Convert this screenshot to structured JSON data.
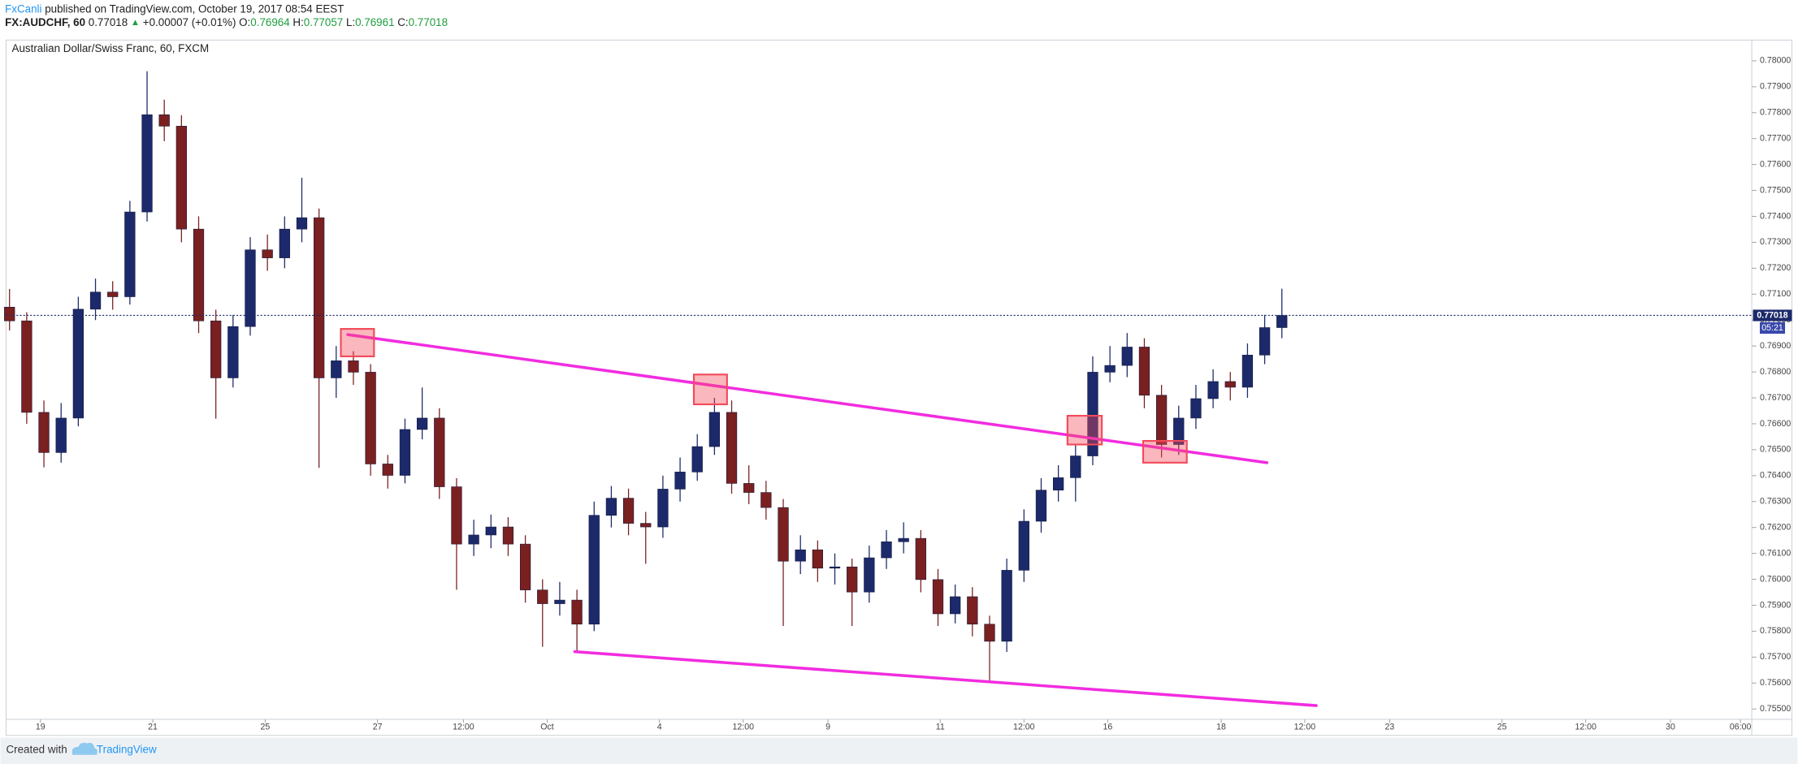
{
  "header": {
    "author": "FxCanli",
    "published": " published on TradingView.com, October 19, 2017 08:54 EEST",
    "symbol": "FX:AUDCHF, 60",
    "last": " 0.77018 ",
    "arrow": "▲",
    "change": " +0.00007 (+0.01%) ",
    "open_label": "O:",
    "open": "0.76964",
    "high_label": " H:",
    "high": "0.77057",
    "low_label": " L:",
    "low": "0.76961",
    "close_label": " C:",
    "close": "0.77018"
  },
  "footer": {
    "created": "Created with",
    "brand": "TradingView"
  },
  "chart_data": {
    "type": "candlestick",
    "title": "Australian Dollar/Swiss Franc, 60, FXCM",
    "x": [
      0,
      1,
      2,
      3,
      4,
      5,
      6,
      7,
      8,
      9,
      10,
      11,
      12,
      13,
      14,
      15,
      16,
      17,
      18,
      19,
      20,
      21,
      22,
      23,
      24,
      25,
      26,
      27,
      28,
      29,
      30,
      31,
      32,
      33,
      34,
      35,
      36,
      37,
      38,
      39,
      40,
      41,
      42,
      43,
      44,
      45,
      46,
      47,
      48,
      49,
      50,
      51,
      52,
      53,
      54,
      55,
      56,
      57,
      58,
      59,
      60,
      61,
      62,
      63,
      64,
      65,
      66,
      67,
      68,
      69,
      70,
      71,
      72,
      73,
      74
    ],
    "open": [
      0.7705,
      0.76997,
      0.76644,
      0.76489,
      0.76622,
      0.77042,
      0.77108,
      0.7709,
      0.77417,
      0.77792,
      0.77748,
      0.77351,
      0.76997,
      0.76777,
      0.76975,
      0.77271,
      0.7724,
      0.77351,
      0.77395,
      0.76777,
      0.76843,
      0.76799,
      0.76445,
      0.76401,
      0.76578,
      0.76622,
      0.76357,
      0.76136,
      0.76171,
      0.76202,
      0.76136,
      0.75959,
      0.75906,
      0.7592,
      0.75827,
      0.76247,
      0.76313,
      0.76216,
      0.76202,
      0.76348,
      0.76414,
      0.76512,
      0.76644,
      0.7637,
      0.76335,
      0.76277,
      0.7607,
      0.76114,
      0.76043,
      0.76048,
      0.75951,
      0.76083,
      0.76145,
      0.76158,
      0.75999,
      0.75867,
      0.75933,
      0.75827,
      0.75761,
      0.76035,
      0.76224,
      0.76344,
      0.76392,
      0.76476,
      0.76799,
      0.76825,
      0.76896,
      0.7671,
      0.7652,
      0.76622,
      0.76697,
      0.76763,
      0.76741,
      0.76865,
      0.76971
    ],
    "high": [
      0.7712,
      0.7703,
      0.7669,
      0.7668,
      0.7709,
      0.7716,
      0.7715,
      0.7746,
      0.7796,
      0.7785,
      0.7779,
      0.774,
      0.7704,
      0.7702,
      0.7732,
      0.7733,
      0.774,
      0.77549,
      0.7743,
      0.769,
      0.7688,
      0.7683,
      0.7648,
      0.7662,
      0.7674,
      0.7666,
      0.7639,
      0.7623,
      0.7625,
      0.7624,
      0.7617,
      0.76,
      0.7599,
      0.7596,
      0.763,
      0.7636,
      0.7635,
      0.7626,
      0.764,
      0.7647,
      0.7656,
      0.767,
      0.7669,
      0.7644,
      0.7638,
      0.7631,
      0.7617,
      0.7615,
      0.761,
      0.7608,
      0.7613,
      0.7619,
      0.7622,
      0.7619,
      0.7604,
      0.7598,
      0.7597,
      0.7586,
      0.7608,
      0.7627,
      0.7639,
      0.7644,
      0.7652,
      0.7686,
      0.769,
      0.7695,
      0.7693,
      0.7675,
      0.7667,
      0.7675,
      0.7681,
      0.768,
      0.7691,
      0.7702,
      0.77121
    ],
    "low": [
      0.7696,
      0.766,
      0.76432,
      0.7645,
      0.7659,
      0.77,
      0.7704,
      0.7706,
      0.7738,
      0.7769,
      0.773,
      0.7695,
      0.7662,
      0.7674,
      0.7694,
      0.7719,
      0.772,
      0.773,
      0.7643,
      0.767,
      0.7675,
      0.764,
      0.7635,
      0.7637,
      0.7654,
      0.7631,
      0.7596,
      0.7609,
      0.7612,
      0.7609,
      0.7591,
      0.7574,
      0.7586,
      0.7572,
      0.758,
      0.762,
      0.7617,
      0.7606,
      0.7616,
      0.763,
      0.7638,
      0.7648,
      0.7633,
      0.7629,
      0.7623,
      0.7582,
      0.7602,
      0.7599,
      0.7598,
      0.7582,
      0.7591,
      0.7604,
      0.761,
      0.7595,
      0.7582,
      0.7583,
      0.7578,
      0.7561,
      0.7572,
      0.7599,
      0.7618,
      0.763,
      0.763,
      0.7644,
      0.7676,
      0.7678,
      0.7666,
      0.7647,
      0.7648,
      0.7658,
      0.7666,
      0.7669,
      0.767,
      0.7683,
      0.7693
    ],
    "close": [
      0.76997,
      0.76644,
      0.76489,
      0.76622,
      0.77042,
      0.77108,
      0.7709,
      0.77417,
      0.77792,
      0.77748,
      0.77351,
      0.76997,
      0.76777,
      0.76975,
      0.77271,
      0.7724,
      0.77351,
      0.77395,
      0.76777,
      0.76843,
      0.76799,
      0.76445,
      0.76401,
      0.76578,
      0.76622,
      0.76357,
      0.76136,
      0.76171,
      0.76202,
      0.76136,
      0.75959,
      0.75906,
      0.7592,
      0.75827,
      0.76247,
      0.76313,
      0.76216,
      0.76202,
      0.76348,
      0.76414,
      0.76512,
      0.76644,
      0.7637,
      0.76335,
      0.76277,
      0.7607,
      0.76114,
      0.76043,
      0.76048,
      0.75951,
      0.76083,
      0.76145,
      0.76158,
      0.75999,
      0.75867,
      0.75933,
      0.75827,
      0.75761,
      0.76035,
      0.76224,
      0.76344,
      0.76392,
      0.76476,
      0.76799,
      0.76825,
      0.76896,
      0.7671,
      0.7652,
      0.76622,
      0.76697,
      0.76763,
      0.76741,
      0.76865,
      0.76971,
      0.77018
    ],
    "up_color": "#1c2a6b",
    "down_color": "#7a2020",
    "xlim": [
      -0.2,
      101.33
    ],
    "xticks": [
      {
        "value": 1.8,
        "label": "19"
      },
      {
        "value": 8.33,
        "label": "21"
      },
      {
        "value": 14.87,
        "label": "25"
      },
      {
        "value": 21.4,
        "label": "27"
      },
      {
        "value": 26.4,
        "label": "12:00"
      },
      {
        "value": 31.27,
        "label": "Oct"
      },
      {
        "value": 37.8,
        "label": "4"
      },
      {
        "value": 42.67,
        "label": "12:00"
      },
      {
        "value": 47.6,
        "label": "9"
      },
      {
        "value": 54.13,
        "label": "11"
      },
      {
        "value": 59.0,
        "label": "12:00"
      },
      {
        "value": 63.87,
        "label": "16"
      },
      {
        "value": 70.47,
        "label": "18"
      },
      {
        "value": 75.33,
        "label": "12:00"
      },
      {
        "value": 80.27,
        "label": "23"
      },
      {
        "value": 86.8,
        "label": "25"
      },
      {
        "value": 91.67,
        "label": "12:00"
      },
      {
        "value": 96.6,
        "label": "30"
      },
      {
        "value": 100.67,
        "label": "06:00"
      }
    ],
    "ylim": [
      0.7546,
      0.7808
    ],
    "yticks": [
      {
        "value": 0.755,
        "label": "0.75500"
      },
      {
        "value": 0.756,
        "label": "0.75600"
      },
      {
        "value": 0.757,
        "label": "0.75700"
      },
      {
        "value": 0.758,
        "label": "0.75800"
      },
      {
        "value": 0.759,
        "label": "0.75900"
      },
      {
        "value": 0.76,
        "label": "0.76000"
      },
      {
        "value": 0.761,
        "label": "0.76100"
      },
      {
        "value": 0.762,
        "label": "0.76200"
      },
      {
        "value": 0.763,
        "label": "0.76300"
      },
      {
        "value": 0.764,
        "label": "0.76400"
      },
      {
        "value": 0.765,
        "label": "0.76500"
      },
      {
        "value": 0.766,
        "label": "0.76600"
      },
      {
        "value": 0.767,
        "label": "0.76700"
      },
      {
        "value": 0.768,
        "label": "0.76800"
      },
      {
        "value": 0.769,
        "label": "0.76900"
      },
      {
        "value": 0.77,
        "label": "0.77000"
      },
      {
        "value": 0.771,
        "label": "0.77100"
      },
      {
        "value": 0.772,
        "label": "0.77200"
      },
      {
        "value": 0.773,
        "label": "0.77300"
      },
      {
        "value": 0.774,
        "label": "0.77400"
      },
      {
        "value": 0.775,
        "label": "0.77500"
      },
      {
        "value": 0.776,
        "label": "0.77600"
      },
      {
        "value": 0.777,
        "label": "0.77700"
      },
      {
        "value": 0.778,
        "label": "0.77800"
      },
      {
        "value": 0.779,
        "label": "0.77900"
      },
      {
        "value": 0.78,
        "label": "0.78000"
      }
    ],
    "grid": false,
    "last_price": 0.77018,
    "last_price_color": "#1c2a6b",
    "countdown": "05:21",
    "countdown_color": "#3949ab",
    "line_color": "#f22ce0",
    "trendlines": [
      {
        "x": [
          19.67,
          73.13
        ],
        "y": [
          0.76944,
          0.7645
        ]
      },
      {
        "x": [
          32.87,
          76.0
        ],
        "y": [
          0.75721,
          0.75513
        ]
      }
    ],
    "box_color": "#f24a5a",
    "boxes": [
      {
        "x": [
          19.27,
          21.2
        ],
        "y": [
          0.76966,
          0.7686
        ]
      },
      {
        "x": [
          39.8,
          41.73
        ],
        "y": [
          0.7679,
          0.76675
        ]
      },
      {
        "x": [
          61.53,
          63.53
        ],
        "y": [
          0.76631,
          0.7652
        ]
      },
      {
        "x": [
          65.93,
          68.47
        ],
        "y": [
          0.76534,
          0.7645
        ]
      }
    ]
  }
}
